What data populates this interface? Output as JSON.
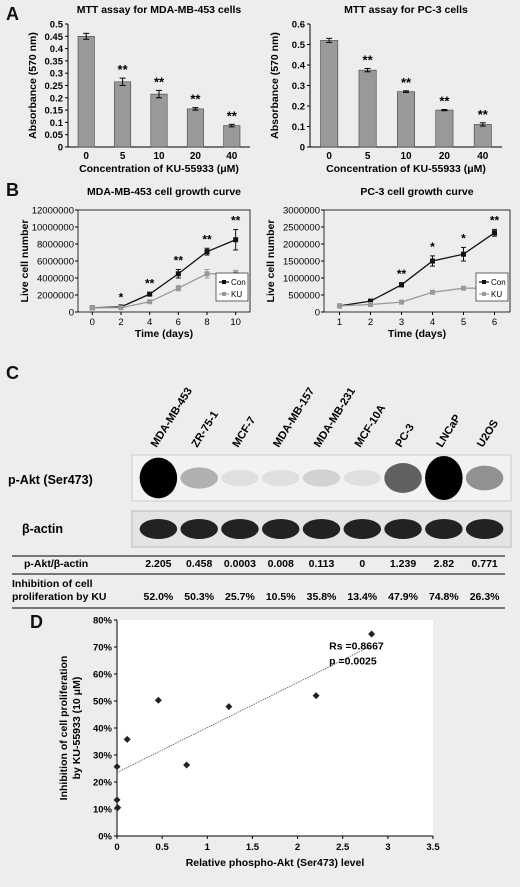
{
  "panel_letters": [
    "A",
    "B",
    "C",
    "D"
  ],
  "chart_data": [
    {
      "type": "bar",
      "title": "MTT assay for MDA-MB-453 cells",
      "xlabel": "Concentration of KU-55933 (μM)",
      "ylabel": "Absorbance (570 nm)",
      "categories": [
        "0",
        "5",
        "10",
        "20",
        "40"
      ],
      "values": [
        0.45,
        0.265,
        0.215,
        0.155,
        0.087
      ],
      "errors": [
        0.012,
        0.015,
        0.015,
        0.005,
        0.005
      ],
      "significance": [
        "",
        "**",
        "**",
        "**",
        "**"
      ],
      "ylim": [
        0,
        0.5
      ],
      "yticks": [
        "0",
        "0.05",
        "0.1",
        "0.15",
        "0.2",
        "0.25",
        "0.3",
        "0.35",
        "0.4",
        "0.45",
        "0.5"
      ],
      "color": "#999999"
    },
    {
      "type": "bar",
      "title": "MTT assay for PC-3 cells",
      "xlabel": "Concentration of KU-55933 (μM)",
      "ylabel": "Absorbance (570 nm)",
      "categories": [
        "0",
        "5",
        "10",
        "20",
        "40"
      ],
      "values": [
        0.52,
        0.375,
        0.27,
        0.18,
        0.11
      ],
      "errors": [
        0.01,
        0.008,
        0.004,
        0.003,
        0.008
      ],
      "significance": [
        "",
        "**",
        "**",
        "**",
        "**"
      ],
      "ylim": [
        0,
        0.6
      ],
      "yticks": [
        "0",
        "0.1",
        "0.2",
        "0.3",
        "0.4",
        "0.5",
        "0.6"
      ],
      "color": "#999999"
    },
    {
      "type": "line",
      "title": "MDA-MB-453 cell growth curve",
      "xlabel": "Time (days)",
      "ylabel": "Live cell number",
      "x": [
        0,
        2,
        4,
        6,
        8,
        10
      ],
      "xticks": [
        "0",
        "2",
        "4",
        "6",
        "8",
        "10"
      ],
      "xlim": [
        -1,
        11
      ],
      "ylim": [
        0,
        12000000
      ],
      "yticks": [
        "0",
        "2000000",
        "4000000",
        "6000000",
        "8000000",
        "10000000",
        "12000000"
      ],
      "legend_position": "right",
      "series": [
        {
          "name": "Con",
          "values": [
            500000,
            600000,
            2100000,
            4500000,
            7100000,
            8500000
          ],
          "errors": [
            50000,
            60000,
            200000,
            500000,
            400000,
            1200000
          ],
          "color": "#111111"
        },
        {
          "name": "KU",
          "values": [
            500000,
            500000,
            1200000,
            2800000,
            4500000,
            4500000
          ],
          "errors": [
            50000,
            50000,
            150000,
            300000,
            500000,
            400000
          ],
          "color": "#999999"
        }
      ],
      "significance": [
        "",
        "*",
        "**",
        "**",
        "**",
        "**"
      ]
    },
    {
      "type": "line",
      "title": "PC-3 cell growth curve",
      "xlabel": "Time (days)",
      "ylabel": "Live cell number",
      "x": [
        1,
        2,
        3,
        4,
        5,
        6
      ],
      "xticks": [
        "1",
        "2",
        "3",
        "4",
        "5",
        "6"
      ],
      "xlim": [
        0.5,
        6.5
      ],
      "ylim": [
        0,
        3000000
      ],
      "yticks": [
        "0",
        "500000",
        "1000000",
        "1500000",
        "2000000",
        "2500000",
        "3000000"
      ],
      "legend_position": "right",
      "series": [
        {
          "name": "Con",
          "values": [
            180000,
            320000,
            800000,
            1500000,
            1700000,
            2330000
          ],
          "errors": [
            20000,
            30000,
            60000,
            150000,
            200000,
            100000
          ],
          "color": "#111111"
        },
        {
          "name": "KU",
          "values": [
            180000,
            220000,
            290000,
            580000,
            700000,
            700000
          ],
          "errors": [
            20000,
            20000,
            30000,
            40000,
            50000,
            80000
          ],
          "color": "#999999"
        }
      ],
      "significance": [
        "",
        "",
        "**",
        "*",
        "*",
        "**"
      ]
    },
    {
      "type": "table",
      "columns": [
        "MDA-MB-453",
        "ZR-75-1",
        "MCF-7",
        "MDA-MB-157",
        "MDA-MB-231",
        "MCF-10A",
        "PC-3",
        "LNCaP",
        "U2OS"
      ],
      "blot_labels": [
        "p-Akt (Ser473)",
        "β-actin"
      ],
      "rows": [
        {
          "label": "p-Akt/β-actin",
          "values": [
            "2.205",
            "0.458",
            "0.0003",
            "0.008",
            "0.113",
            "0",
            "1.239",
            "2.82",
            "0.771"
          ]
        },
        {
          "label": "Inhibition of cell proliferation by KU",
          "values": [
            "52.0%",
            "50.3%",
            "25.7%",
            "10.5%",
            "35.8%",
            "13.4%",
            "47.9%",
            "74.8%",
            "26.3%"
          ]
        }
      ]
    },
    {
      "type": "scatter",
      "xlabel": "Relative phospho-Akt (Ser473) level",
      "ylabel": "Inhibition of cell proliferation by KU-55933 (10 μM)",
      "xlim": [
        0,
        3.5
      ],
      "ylim": [
        0,
        80
      ],
      "xticks": [
        "0",
        "0.5",
        "1",
        "1.5",
        "2",
        "2.5",
        "3",
        "3.5"
      ],
      "yticks": [
        "0%",
        "10%",
        "20%",
        "30%",
        "40%",
        "50%",
        "60%",
        "70%",
        "80%"
      ],
      "points": [
        {
          "x": 2.205,
          "y": 52.0
        },
        {
          "x": 0.458,
          "y": 50.3
        },
        {
          "x": 0.0003,
          "y": 25.7
        },
        {
          "x": 0.008,
          "y": 10.5
        },
        {
          "x": 0.113,
          "y": 35.8
        },
        {
          "x": 0,
          "y": 13.4
        },
        {
          "x": 1.239,
          "y": 47.9
        },
        {
          "x": 2.82,
          "y": 74.8
        },
        {
          "x": 0.771,
          "y": 26.3
        }
      ],
      "trendline": {
        "x0": 0,
        "y0": 23.5,
        "x1": 2.82,
        "y1": 70.5
      },
      "annotations": [
        "Rs =0.8667",
        "p =0.0025"
      ]
    }
  ]
}
